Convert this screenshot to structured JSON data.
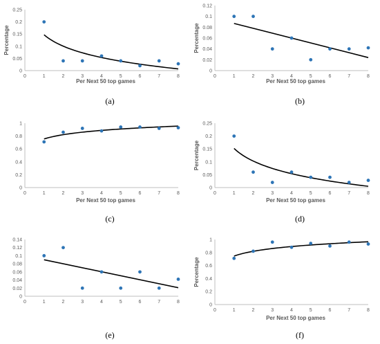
{
  "style": {
    "marker_color": "#2E75B6",
    "trend_color": "#000000",
    "axis_color": "#BFBFBF",
    "text_color": "#595959"
  },
  "chart_data": [
    {
      "id": "a",
      "caption": "(a)",
      "type": "scatter",
      "trendline": "log",
      "xlabel": "Per Next 50 top games",
      "ylabel": "Percentage",
      "xlim": [
        0,
        8
      ],
      "ylim": [
        0,
        0.25
      ],
      "xticks": [
        "0",
        "1",
        "2",
        "3",
        "4",
        "5",
        "6",
        "7",
        "8"
      ],
      "yticks": [
        "0",
        "0.05",
        "0.1",
        "0.15",
        "0.2",
        "0.25"
      ],
      "x": [
        1,
        2,
        3,
        4,
        5,
        6,
        7,
        8
      ],
      "y": [
        0.2,
        0.04,
        0.04,
        0.06,
        0.04,
        0.02,
        0.04,
        0.028
      ],
      "trend_start": 0.147,
      "trend_end": 0.007
    },
    {
      "id": "b",
      "caption": "(b)",
      "type": "scatter",
      "trendline": "linear",
      "xlabel": "Per Next 50 top games",
      "ylabel": "Percentage",
      "xlim": [
        0,
        8
      ],
      "ylim": [
        0,
        0.12
      ],
      "xticks": [
        "0",
        "1",
        "2",
        "3",
        "4",
        "5",
        "6",
        "7",
        "8"
      ],
      "yticks": [
        "0",
        "0.02",
        "0.04",
        "0.06",
        "0.08",
        "0.1",
        "0.12"
      ],
      "x": [
        1,
        2,
        3,
        4,
        5,
        6,
        7,
        8
      ],
      "y": [
        0.1,
        0.1,
        0.04,
        0.06,
        0.02,
        0.04,
        0.04,
        0.042
      ],
      "trend_start": 0.087,
      "trend_end": 0.024
    },
    {
      "id": "c",
      "caption": "(c)",
      "type": "scatter",
      "trendline": "log",
      "xlabel": "Per Next 50 top games",
      "ylabel": "",
      "xlim": [
        0,
        8
      ],
      "ylim": [
        0,
        1
      ],
      "xticks": [
        "0",
        "1",
        "2",
        "3",
        "4",
        "5",
        "6",
        "7",
        "8"
      ],
      "yticks": [
        "0",
        "0.2",
        "0.4",
        "0.6",
        "0.8",
        "1"
      ],
      "x": [
        1,
        2,
        3,
        4,
        5,
        6,
        7,
        8
      ],
      "y": [
        0.71,
        0.86,
        0.92,
        0.88,
        0.94,
        0.94,
        0.92,
        0.93
      ],
      "trend_start": 0.755,
      "trend_end": 0.955
    },
    {
      "id": "d",
      "caption": "(d)",
      "type": "scatter",
      "trendline": "log",
      "xlabel": "Per Next 50 top games",
      "ylabel": "Percentage",
      "xlim": [
        0,
        8
      ],
      "ylim": [
        0,
        0.25
      ],
      "xticks": [
        "0",
        "1",
        "2",
        "3",
        "4",
        "5",
        "6",
        "7",
        "8"
      ],
      "yticks": [
        "0",
        "0.05",
        "0.1",
        "0.15",
        "0.2",
        "0.25"
      ],
      "x": [
        1,
        2,
        3,
        4,
        5,
        6,
        7,
        8
      ],
      "y": [
        0.2,
        0.06,
        0.02,
        0.06,
        0.04,
        0.04,
        0.02,
        0.028
      ],
      "trend_start": 0.152,
      "trend_end": 0.005
    },
    {
      "id": "e",
      "caption": "(e)",
      "type": "scatter",
      "trendline": "linear",
      "xlabel": "",
      "ylabel": "",
      "xlim": [
        0,
        8
      ],
      "ylim": [
        0,
        0.14
      ],
      "xticks": [
        "0",
        "1",
        "2",
        "3",
        "4",
        "5",
        "6",
        "7",
        "8"
      ],
      "yticks": [
        "0",
        "0.02",
        "0.04",
        "0.06",
        "0.08",
        "0.1",
        "0.12",
        "0.14"
      ],
      "x": [
        1,
        2,
        3,
        4,
        5,
        6,
        7,
        8
      ],
      "y": [
        0.1,
        0.12,
        0.02,
        0.06,
        0.02,
        0.06,
        0.02,
        0.042
      ],
      "trend_start": 0.09,
      "trend_end": 0.021
    },
    {
      "id": "f",
      "caption": "(f)",
      "type": "scatter",
      "trendline": "log",
      "xlabel": "Per Next 50 top games",
      "ylabel": "Percentage",
      "xlim": [
        0,
        8
      ],
      "ylim": [
        0,
        1
      ],
      "xticks": [
        "0",
        "1",
        "2",
        "3",
        "4",
        "5",
        "6",
        "7",
        "8"
      ],
      "yticks": [
        "0",
        "0.2",
        "0.4",
        "0.6",
        "0.8",
        "1"
      ],
      "x": [
        1,
        2,
        3,
        4,
        5,
        6,
        7,
        8
      ],
      "y": [
        0.71,
        0.82,
        0.96,
        0.88,
        0.94,
        0.9,
        0.96,
        0.93
      ],
      "trend_start": 0.745,
      "trend_end": 0.965
    }
  ]
}
